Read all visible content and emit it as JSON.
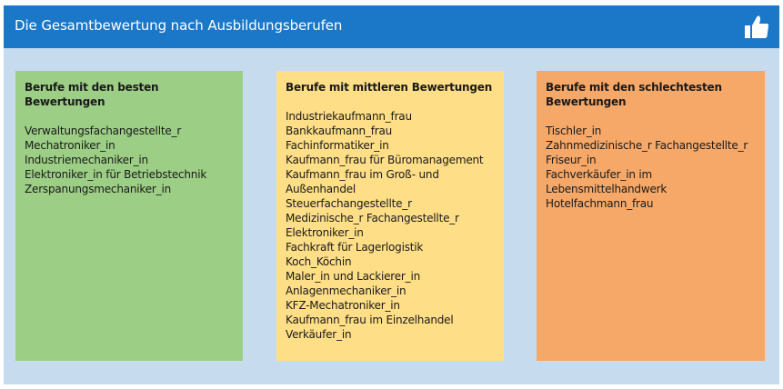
{
  "header": {
    "title": "Die Gesamtbewertung nach Ausbildungsberufen",
    "icon": "thumbs-up-icon"
  },
  "colors": {
    "header": "#1b77c7",
    "frame": "#c7dbef",
    "best": "#9cce85",
    "middle": "#fede86",
    "worst": "#f6a868"
  },
  "columns": [
    {
      "title": "Berufe mit den besten Bewertungen",
      "items": [
        "Verwaltungsfachangestellte_r",
        "Mechatroniker_in",
        "Industriemechaniker_in",
        "Elektroniker_in für Betriebstechnik",
        "Zerspanungsmechaniker_in"
      ]
    },
    {
      "title": "Berufe mit mittleren Bewertungen",
      "items": [
        "Industriekaufmann_frau",
        "Bankkaufmann_frau",
        "Fachinformatiker_in",
        "Kaufmann_frau für Büromanagement",
        "Kaufmann_frau im Groß- und Außenhandel",
        "Steuerfachangestellte_r",
        "Medizinische_r Fachangestellte_r",
        "Elektroniker_in",
        "Fachkraft für Lagerlogistik",
        "Koch_Köchin",
        "Maler_in und Lackierer_in",
        "Anlagenmechaniker_in",
        "KFZ-Mechatroniker_in",
        "Kaufmann_frau im Einzelhandel",
        "Verkäufer_in"
      ]
    },
    {
      "title": "Berufe mit den schlechtesten Bewertungen",
      "items": [
        "Tischler_in",
        "Zahnmedizinische_r Fachangestellte_r",
        "Friseur_in",
        "Fachverkäufer_in im Lebensmittelhandwerk",
        "Hotelfachmann_frau"
      ]
    }
  ]
}
